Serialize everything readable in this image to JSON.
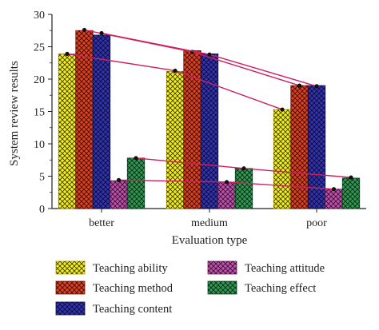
{
  "chart_data": {
    "type": "bar",
    "xlabel": "Evaluation type",
    "ylabel": "System review results",
    "ylim": [
      0,
      30
    ],
    "yticks": [
      0,
      5,
      10,
      15,
      20,
      25,
      30
    ],
    "categories": [
      "better",
      "medium",
      "poor"
    ],
    "series": [
      {
        "name": "Teaching ability",
        "values": [
          23.9,
          21.2,
          15.3
        ],
        "color": "#f2ef1c",
        "edge": "#b59a00"
      },
      {
        "name": "Teaching method",
        "values": [
          27.5,
          24.4,
          19.0
        ],
        "color": "#e0401e",
        "edge": "#7a1808"
      },
      {
        "name": "Teaching content",
        "values": [
          26.8,
          23.9,
          19.0
        ],
        "color": "#3232b4",
        "edge": "#101050"
      },
      {
        "name": "Teaching attitude",
        "values": [
          4.3,
          4.1,
          3.0
        ],
        "color": "#c24fae",
        "edge": "#6e1e60"
      },
      {
        "name": "Teaching effect",
        "values": [
          7.8,
          6.2,
          4.7
        ],
        "color": "#2f9a52",
        "edge": "#0f4a22"
      }
    ],
    "trend_lines": {
      "color": "#d02060",
      "lines": [
        {
          "series": "Teaching method",
          "values": [
            27.6,
            24.2,
            19.0
          ]
        },
        {
          "series": "Teaching content",
          "values": [
            27.1,
            23.8,
            18.9
          ]
        },
        {
          "series": "Teaching ability",
          "values": [
            23.9,
            21.3,
            15.3
          ]
        },
        {
          "series": "Teaching effect",
          "values": [
            7.8,
            6.2,
            4.8
          ]
        },
        {
          "series": "Teaching attitude",
          "values": [
            4.4,
            4.1,
            3.0
          ]
        }
      ]
    },
    "legend_layout": "bottom, two columns",
    "legend_order": [
      "Teaching ability",
      "Teaching attitude",
      "Teaching method",
      "Teaching effect",
      "Teaching content"
    ]
  }
}
